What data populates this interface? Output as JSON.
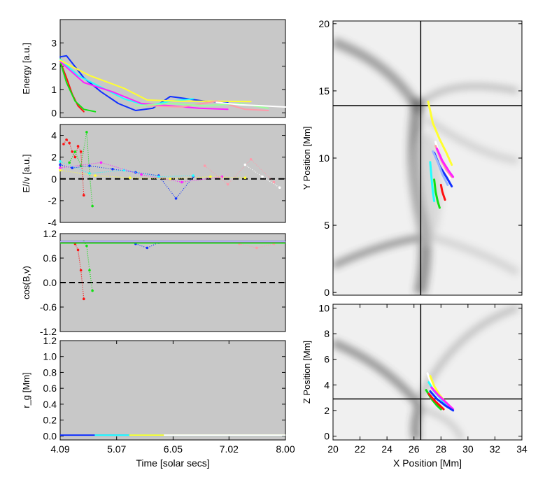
{
  "colors": {
    "panel_bg": "#c8c8c8",
    "series": [
      "#ff0000",
      "#00dd00",
      "#0033ff",
      "#00ffff",
      "#ff00ff",
      "#ffff00",
      "#ff9999",
      "#99ff99",
      "#9999ff",
      "#ffffff"
    ]
  },
  "chart_data": [
    {
      "id": "energy",
      "type": "line",
      "ylabel": "Energy [a.u.]",
      "xlim": [
        4.09,
        8.0
      ],
      "ylim": [
        -0.2,
        4.0
      ],
      "yticks": [
        0,
        1,
        2,
        3
      ],
      "yticklabels": [
        "0",
        "1",
        "2",
        "3"
      ],
      "series": [
        {
          "name": "red",
          "x": [
            4.09,
            4.2,
            4.3,
            4.4,
            4.5
          ],
          "y": [
            2.2,
            1.5,
            0.8,
            0.3,
            0.05
          ]
        },
        {
          "name": "green",
          "x": [
            4.09,
            4.2,
            4.35,
            4.5,
            4.7
          ],
          "y": [
            2.2,
            1.3,
            0.5,
            0.15,
            0.05
          ]
        },
        {
          "name": "blue",
          "x": [
            4.09,
            4.2,
            4.5,
            4.8,
            5.1,
            5.4,
            5.7,
            6.0,
            6.3,
            6.6,
            7.0
          ],
          "y": [
            2.4,
            2.45,
            1.5,
            0.9,
            0.4,
            0.1,
            0.2,
            0.7,
            0.6,
            0.5,
            0.45
          ]
        },
        {
          "name": "cyan",
          "x": [
            4.09,
            4.4,
            4.8,
            5.2,
            5.6,
            6.0,
            6.4
          ],
          "y": [
            2.3,
            1.6,
            1.1,
            0.6,
            0.3,
            0.5,
            0.6
          ]
        },
        {
          "name": "magenta",
          "x": [
            4.09,
            4.5,
            5.0,
            5.5,
            6.0,
            6.5,
            7.0
          ],
          "y": [
            2.2,
            1.3,
            0.9,
            0.4,
            0.3,
            0.2,
            0.15
          ]
        },
        {
          "name": "yellow",
          "x": [
            4.09,
            4.6,
            5.2,
            5.6,
            6.2,
            6.8,
            7.4
          ],
          "y": [
            2.25,
            1.6,
            1.05,
            0.55,
            0.5,
            0.5,
            0.48
          ]
        },
        {
          "name": "pink",
          "x": [
            5.6,
            6.2,
            6.8,
            7.3,
            7.7
          ],
          "y": [
            0.3,
            0.25,
            0.5,
            0.15,
            0.1
          ]
        },
        {
          "name": "lightgreen",
          "x": [
            5.4,
            6.0,
            6.6,
            7.2,
            7.7
          ],
          "y": [
            0.3,
            0.4,
            0.3,
            0.4,
            0.2
          ]
        },
        {
          "name": "white",
          "x": [
            6.8,
            7.2,
            7.6,
            8.0
          ],
          "y": [
            0.45,
            0.35,
            0.3,
            0.25
          ]
        }
      ]
    },
    {
      "id": "eparallel",
      "type": "scatter",
      "ylabel": "E//v [a.u.]",
      "xlim": [
        4.09,
        8.0
      ],
      "ylim": [
        -4.0,
        5.0
      ],
      "yticks": [
        -4,
        -2,
        0,
        2,
        4
      ],
      "yticklabels": [
        "-4",
        "-2",
        "0",
        "2",
        "4"
      ],
      "zero_line": true,
      "series": [
        {
          "name": "red",
          "x": [
            4.15,
            4.2,
            4.25,
            4.3,
            4.35,
            4.4,
            4.45,
            4.5
          ],
          "y": [
            3.2,
            3.6,
            3.3,
            2.5,
            2.0,
            3.0,
            2.5,
            -1.5
          ]
        },
        {
          "name": "green",
          "x": [
            4.25,
            4.35,
            4.45,
            4.55,
            4.6,
            4.65
          ],
          "y": [
            1.5,
            2.5,
            1.2,
            4.3,
            0.5,
            -2.5
          ]
        },
        {
          "name": "blue",
          "x": [
            4.09,
            4.3,
            4.6,
            5.0,
            5.4,
            5.8,
            6.1,
            6.4
          ],
          "y": [
            1.3,
            1.0,
            1.2,
            0.9,
            0.6,
            0.3,
            -1.8,
            0.2
          ]
        },
        {
          "name": "cyan",
          "x": [
            4.09,
            4.6,
            5.2,
            5.8,
            6.4
          ],
          "y": [
            1.6,
            0.5,
            0.8,
            0.2,
            0.3
          ]
        },
        {
          "name": "magenta",
          "x": [
            4.09,
            4.8,
            5.5,
            6.2,
            6.9
          ],
          "y": [
            1.0,
            1.5,
            0.4,
            -0.3,
            0.2
          ]
        },
        {
          "name": "yellow",
          "x": [
            4.09,
            4.7,
            5.3,
            6.0,
            6.7,
            7.3
          ],
          "y": [
            0.8,
            0.3,
            0.1,
            0.0,
            0.2,
            0.1
          ]
        },
        {
          "name": "pink",
          "x": [
            6.6,
            7.0,
            7.4,
            7.8
          ],
          "y": [
            1.2,
            -0.5,
            1.8,
            -0.3
          ]
        },
        {
          "name": "white",
          "x": [
            7.3,
            7.6,
            7.9
          ],
          "y": [
            1.3,
            0.2,
            -0.8
          ]
        }
      ]
    },
    {
      "id": "cosbv",
      "type": "scatter",
      "ylabel": "cos(B,v)",
      "xlim": [
        4.09,
        8.0
      ],
      "ylim": [
        -1.2,
        1.2
      ],
      "yticks": [
        -1.2,
        -0.6,
        0.0,
        0.6,
        1.2
      ],
      "yticklabels": [
        "-1.2",
        "-0.6",
        "0.0",
        "0.6",
        "1.2"
      ],
      "zero_line": true,
      "series": [
        {
          "name": "red",
          "x": [
            4.35,
            4.4,
            4.45,
            4.5
          ],
          "y": [
            0.95,
            0.8,
            0.3,
            -0.4
          ]
        },
        {
          "name": "green",
          "x": [
            4.5,
            4.55,
            4.6,
            4.65
          ],
          "y": [
            1.0,
            0.9,
            0.3,
            -0.2
          ]
        },
        {
          "name": "blue",
          "x": [
            5.4,
            5.6,
            5.8
          ],
          "y": [
            0.95,
            0.85,
            0.98
          ]
        },
        {
          "name": "pink",
          "x": [
            7.2,
            7.5,
            7.8
          ],
          "y": [
            0.95,
            0.85,
            0.95
          ]
        }
      ]
    },
    {
      "id": "rg",
      "type": "line",
      "ylabel": "r_g [Mm]",
      "xlabel": "Time [solar secs]",
      "xlim": [
        4.09,
        8.0
      ],
      "ylim": [
        -0.05,
        1.2
      ],
      "yticks": [
        0.0,
        0.2,
        0.4,
        0.6,
        0.8,
        1.0,
        1.2
      ],
      "yticklabels": [
        "0.0",
        "0.2",
        "0.4",
        "0.6",
        "0.8",
        "1.0",
        "1.2"
      ],
      "xticks": [
        4.09,
        5.07,
        6.05,
        7.02,
        8.0
      ],
      "xticklabels": [
        "4.09",
        "5.07",
        "6.05",
        "7.02",
        "8.00"
      ]
    },
    {
      "id": "xy",
      "type": "line",
      "ylabel": "Y Position [Mm]",
      "xlim": [
        20,
        34
      ],
      "ylim": [
        -0.2,
        20.2
      ],
      "yticks": [
        0,
        5,
        10,
        15,
        20
      ],
      "yticklabels": [
        "0",
        "5",
        "10",
        "15",
        "20"
      ],
      "crosshair": {
        "x": 26.5,
        "y": 13.9
      },
      "series": [
        {
          "name": "yellow",
          "x": [
            27.05,
            27.4,
            27.9,
            28.4,
            28.8
          ],
          "y": [
            14.2,
            12.6,
            11.4,
            10.4,
            9.5
          ]
        },
        {
          "name": "white",
          "x": [
            27.6,
            27.9,
            28.3,
            28.7
          ],
          "y": [
            11.2,
            10.2,
            9.2,
            8.5
          ]
        },
        {
          "name": "pink",
          "x": [
            27.6,
            28.0,
            28.4,
            28.8
          ],
          "y": [
            10.9,
            9.9,
            9.1,
            8.6
          ]
        },
        {
          "name": "magenta",
          "x": [
            27.7,
            28.1,
            28.6,
            28.9
          ],
          "y": [
            10.7,
            9.8,
            9.0,
            8.6
          ]
        },
        {
          "name": "blue",
          "x": [
            27.5,
            27.9,
            28.4,
            28.8
          ],
          "y": [
            10.4,
            9.4,
            8.6,
            7.9
          ]
        },
        {
          "name": "lightblue",
          "x": [
            27.4,
            27.8,
            28.1,
            28.5
          ],
          "y": [
            10.5,
            9.6,
            8.8,
            8.0
          ]
        },
        {
          "name": "cyan",
          "x": [
            27.2,
            27.3,
            27.4,
            27.5
          ],
          "y": [
            9.7,
            8.5,
            7.5,
            6.8
          ]
        },
        {
          "name": "green",
          "x": [
            27.5,
            27.6,
            27.75,
            27.9
          ],
          "y": [
            8.4,
            7.5,
            6.8,
            6.3
          ]
        },
        {
          "name": "red",
          "x": [
            28.0,
            28.1,
            28.2,
            28.3
          ],
          "y": [
            8.0,
            7.5,
            7.2,
            6.9
          ]
        }
      ]
    },
    {
      "id": "xz",
      "type": "line",
      "ylabel": "Z Position [Mm]",
      "xlabel": "X Position [Mm]",
      "xlim": [
        20,
        34
      ],
      "ylim": [
        -0.3,
        10.3
      ],
      "yticks": [
        0,
        2,
        4,
        6,
        8,
        10
      ],
      "yticklabels": [
        "0",
        "2",
        "4",
        "6",
        "8",
        "10"
      ],
      "xticks": [
        20,
        22,
        24,
        26,
        28,
        30,
        32,
        34
      ],
      "xticklabels": [
        "20",
        "22",
        "24",
        "26",
        "28",
        "30",
        "32",
        "34"
      ],
      "crosshair": {
        "x": 26.5,
        "y": 2.9
      },
      "series": [
        {
          "name": "white",
          "x": [
            27.0,
            27.3,
            27.7,
            28.1
          ],
          "y": [
            4.9,
            4.0,
            3.2,
            2.6
          ]
        },
        {
          "name": "yellow",
          "x": [
            27.2,
            27.5,
            27.9,
            28.3
          ],
          "y": [
            4.7,
            3.9,
            3.2,
            2.7
          ]
        },
        {
          "name": "cyan",
          "x": [
            27.1,
            27.5,
            28.0,
            28.5
          ],
          "y": [
            4.2,
            3.5,
            2.9,
            2.3
          ]
        },
        {
          "name": "magenta",
          "x": [
            27.3,
            27.8,
            28.4,
            28.9
          ],
          "y": [
            3.8,
            3.2,
            2.6,
            2.1
          ]
        },
        {
          "name": "blue",
          "x": [
            27.2,
            27.7,
            28.3,
            28.9
          ],
          "y": [
            3.5,
            2.9,
            2.4,
            2.0
          ]
        },
        {
          "name": "green",
          "x": [
            26.9,
            27.3,
            27.7,
            28.0
          ],
          "y": [
            3.6,
            2.9,
            2.4,
            2.1
          ]
        },
        {
          "name": "red",
          "x": [
            27.1,
            27.5,
            27.9,
            28.2
          ],
          "y": [
            3.3,
            2.8,
            2.4,
            2.1
          ]
        }
      ]
    }
  ]
}
